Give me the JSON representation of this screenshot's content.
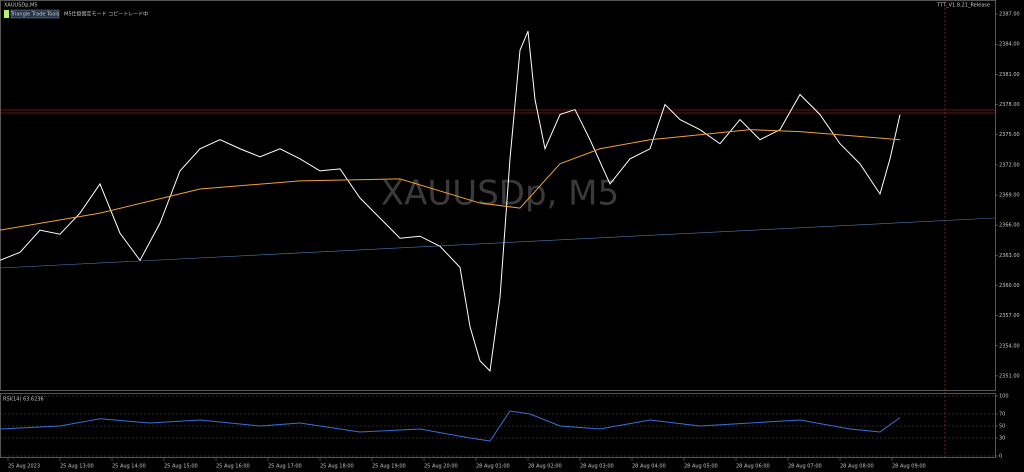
{
  "header": {
    "symbol": "XAUUSDp,M5",
    "button": "Triangle Trade Tools",
    "status": "M5仕掛固定モード コピートレード中",
    "watermark": "XAUUSDp, M5",
    "indicator_tag": "TTT_V1.8.21_Release"
  },
  "chart_data": [
    {
      "type": "line",
      "pane": "price",
      "xlim": [
        0,
        995
      ],
      "ylim": [
        2349.6,
        2388.4
      ],
      "yticks": [
        {
          "value": 2351,
          "label": "2351.00"
        },
        {
          "value": 2354,
          "label": "2354.00"
        },
        {
          "value": 2357,
          "label": "2357.00"
        },
        {
          "value": 2360,
          "label": "2360.00"
        },
        {
          "value": 2363,
          "label": "2363.00"
        },
        {
          "value": 2366,
          "label": "2366.00"
        },
        {
          "value": 2369,
          "label": "2369.00"
        },
        {
          "value": 2372,
          "label": "2372.00"
        },
        {
          "value": 2375,
          "label": "2375.00"
        },
        {
          "value": 2378,
          "label": "2378.00"
        },
        {
          "value": 2381,
          "label": "2381.00"
        },
        {
          "value": 2384,
          "label": "2384.00"
        },
        {
          "value": 2387,
          "label": "2387.00"
        }
      ],
      "xticks": [
        {
          "value": 8,
          "label": "25 Aug 2023"
        },
        {
          "value": 60,
          "label": "25 Aug 13:00"
        },
        {
          "value": 112,
          "label": "25 Aug 14:00"
        },
        {
          "value": 164,
          "label": "25 Aug 15:00"
        },
        {
          "value": 216,
          "label": "25 Aug 16:00"
        },
        {
          "value": 268,
          "label": "25 Aug 17:00"
        },
        {
          "value": 320,
          "label": "25 Aug 18:00"
        },
        {
          "value": 372,
          "label": "25 Aug 19:00"
        },
        {
          "value": 424,
          "label": "25 Aug 20:00"
        },
        {
          "value": 476,
          "label": "28 Aug 01:00"
        },
        {
          "value": 528,
          "label": "28 Aug 02:00"
        },
        {
          "value": 580,
          "label": "28 Aug 03:00"
        },
        {
          "value": 632,
          "label": "28 Aug 04:00"
        },
        {
          "value": 684,
          "label": "28 Aug 05:00"
        },
        {
          "value": 736,
          "label": "28 Aug 06:00"
        },
        {
          "value": 788,
          "label": "28 Aug 07:00"
        },
        {
          "value": 840,
          "label": "28 Aug 08:00"
        },
        {
          "value": 892,
          "label": "28 Aug 09:00"
        }
      ],
      "series": [
        {
          "name": "Close",
          "color": "#ffffff",
          "x": [
            0,
            20,
            40,
            60,
            80,
            100,
            120,
            140,
            160,
            180,
            200,
            220,
            240,
            260,
            280,
            300,
            320,
            340,
            360,
            380,
            400,
            420,
            440,
            460,
            470,
            480,
            490,
            500,
            510,
            520,
            528,
            535,
            545,
            560,
            575,
            590,
            610,
            630,
            650,
            665,
            680,
            700,
            720,
            740,
            760,
            780,
            800,
            820,
            840,
            860,
            880,
            890,
            900
          ],
          "values": [
            2362.5,
            2363.3,
            2365.5,
            2365.1,
            2367.2,
            2370.1,
            2365.2,
            2362.5,
            2366.2,
            2371.4,
            2373.6,
            2374.5,
            2373.6,
            2372.8,
            2373.6,
            2372.6,
            2371.4,
            2371.6,
            2368.7,
            2366.7,
            2364.7,
            2364.9,
            2363.9,
            2361.8,
            2355.9,
            2352.5,
            2351.5,
            2358.8,
            2372.6,
            2383.4,
            2385.3,
            2378.5,
            2373.6,
            2377.0,
            2377.5,
            2374.5,
            2370.1,
            2372.6,
            2373.6,
            2378.0,
            2376.5,
            2375.5,
            2374.1,
            2376.5,
            2374.5,
            2375.5,
            2379.0,
            2377.0,
            2374.1,
            2372.1,
            2369.1,
            2372.6,
            2377.0
          ]
        },
        {
          "name": "MA",
          "color": "#f0a030",
          "x": [
            0,
            100,
            200,
            300,
            400,
            480,
            520,
            560,
            600,
            650,
            700,
            750,
            800,
            900
          ],
          "values": [
            2365.5,
            2367.2,
            2369.6,
            2370.4,
            2370.6,
            2368.2,
            2367.7,
            2372.1,
            2373.6,
            2374.5,
            2375.0,
            2375.5,
            2375.3,
            2374.5
          ]
        }
      ]
    },
    {
      "type": "line",
      "pane": "rsi",
      "title": "RSI(14) 63.6236",
      "xlim": [
        0,
        995
      ],
      "ylim": [
        0,
        100
      ],
      "yticks": [
        0,
        30,
        50,
        70,
        100
      ],
      "series": [
        {
          "name": "RSI",
          "color": "#3a6fd8",
          "x": [
            0,
            60,
            100,
            150,
            200,
            260,
            300,
            360,
            420,
            470,
            490,
            510,
            530,
            560,
            600,
            650,
            700,
            750,
            800,
            850,
            880,
            900
          ],
          "values": [
            45,
            50,
            62,
            55,
            60,
            50,
            55,
            40,
            45,
            30,
            25,
            75,
            70,
            50,
            45,
            60,
            50,
            55,
            60,
            45,
            40,
            64
          ]
        }
      ]
    }
  ]
}
